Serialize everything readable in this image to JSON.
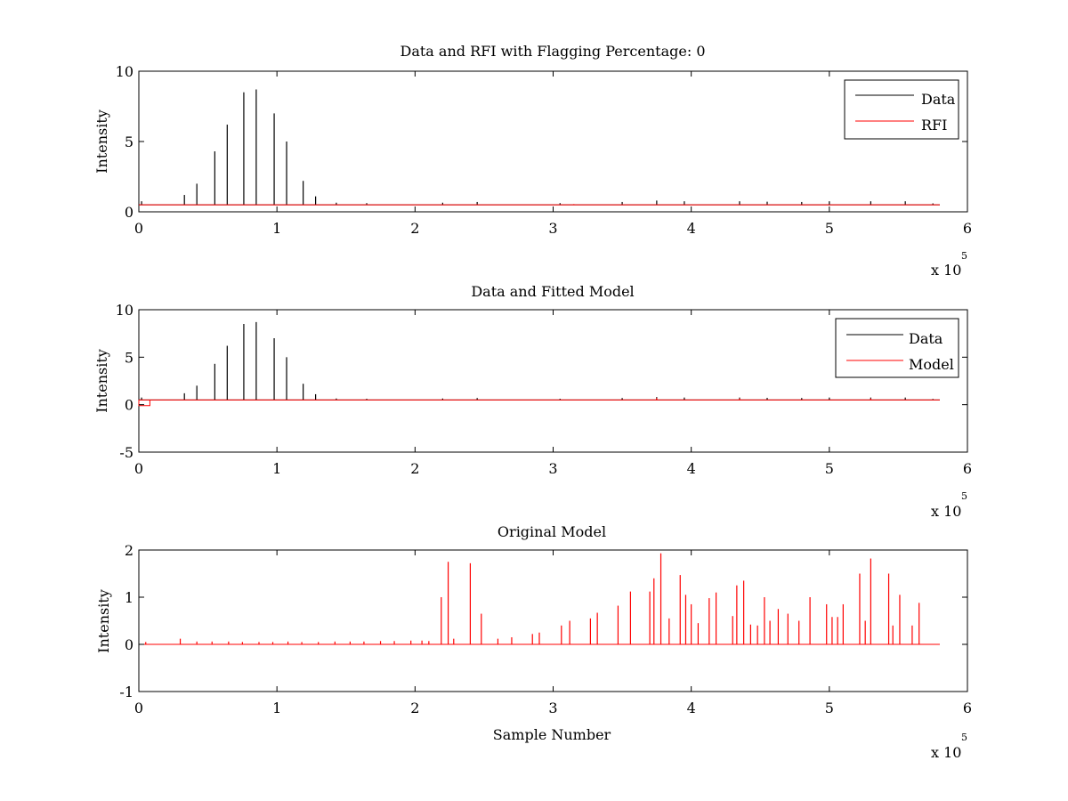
{
  "chart_data": [
    {
      "type": "line",
      "title": "Data and RFI with Flagging Percentage: 0",
      "ylabel": "Intensity",
      "xlabel": "",
      "xlim": [
        0,
        6
      ],
      "ylim": [
        0,
        10
      ],
      "xticks": [
        "0",
        "1",
        "2",
        "3",
        "4",
        "5",
        "6"
      ],
      "yticks": [
        "0",
        "5",
        "10"
      ],
      "x_multiplier": "x 10",
      "x_multiplier_exp": "5",
      "legend_position": "top-right",
      "series": [
        {
          "name": "Data",
          "color": "#000000",
          "baseline": 0.5,
          "x_end": 5.8,
          "peaks": [
            [
              0.02,
              0.75
            ],
            [
              0.33,
              1.2
            ],
            [
              0.42,
              2.0
            ],
            [
              0.55,
              4.3
            ],
            [
              0.64,
              6.2
            ],
            [
              0.76,
              8.5
            ],
            [
              0.85,
              8.7
            ],
            [
              0.98,
              7.0
            ],
            [
              1.07,
              5.0
            ],
            [
              1.19,
              2.2
            ],
            [
              1.28,
              1.1
            ],
            [
              1.43,
              0.65
            ],
            [
              1.65,
              0.62
            ],
            [
              2.2,
              0.65
            ],
            [
              2.45,
              0.7
            ],
            [
              3.05,
              0.62
            ],
            [
              3.5,
              0.7
            ],
            [
              3.75,
              0.8
            ],
            [
              3.95,
              0.75
            ],
            [
              4.35,
              0.75
            ],
            [
              4.55,
              0.72
            ],
            [
              4.8,
              0.7
            ],
            [
              5.0,
              0.75
            ],
            [
              5.3,
              0.75
            ],
            [
              5.55,
              0.75
            ],
            [
              5.75,
              0.6
            ]
          ]
        },
        {
          "name": "RFI",
          "color": "#ff0000",
          "baseline": 0.5,
          "x_end": 5.8,
          "peaks": [
            [
              3.15,
              0.55
            ]
          ]
        }
      ]
    },
    {
      "type": "line",
      "title": "Data and Fitted Model",
      "ylabel": "Intensity",
      "xlabel": "",
      "xlim": [
        0,
        6
      ],
      "ylim": [
        -5,
        10
      ],
      "xticks": [
        "0",
        "1",
        "2",
        "3",
        "4",
        "5",
        "6"
      ],
      "yticks": [
        "-5",
        "0",
        "5",
        "10"
      ],
      "x_multiplier": "x 10",
      "x_multiplier_exp": "5",
      "legend_position": "top-right",
      "series": [
        {
          "name": "Data",
          "color": "#000000",
          "baseline": 0.5,
          "x_end": 5.8,
          "peaks": [
            [
              0.02,
              0.75
            ],
            [
              0.33,
              1.2
            ],
            [
              0.42,
              2.0
            ],
            [
              0.55,
              4.3
            ],
            [
              0.64,
              6.2
            ],
            [
              0.76,
              8.5
            ],
            [
              0.85,
              8.7
            ],
            [
              0.98,
              7.0
            ],
            [
              1.07,
              5.0
            ],
            [
              1.19,
              2.2
            ],
            [
              1.28,
              1.1
            ],
            [
              1.43,
              0.65
            ],
            [
              1.65,
              0.62
            ],
            [
              2.2,
              0.65
            ],
            [
              2.45,
              0.7
            ],
            [
              3.05,
              0.62
            ],
            [
              3.5,
              0.7
            ],
            [
              3.75,
              0.8
            ],
            [
              3.95,
              0.75
            ],
            [
              4.35,
              0.75
            ],
            [
              4.55,
              0.72
            ],
            [
              4.8,
              0.7
            ],
            [
              5.0,
              0.75
            ],
            [
              5.3,
              0.75
            ],
            [
              5.55,
              0.75
            ],
            [
              5.75,
              0.6
            ]
          ]
        },
        {
          "name": "Model",
          "color": "#ff0000",
          "baseline": 0.5,
          "x_end": 5.8,
          "dip": [
            0.0,
            0.08,
            -0.1
          ],
          "peaks": [
            [
              3.75,
              0.7
            ],
            [
              4.35,
              0.65
            ],
            [
              5.3,
              0.65
            ]
          ]
        }
      ]
    },
    {
      "type": "line",
      "title": "Original Model",
      "ylabel": "Intensity",
      "xlabel": "Sample Number",
      "xlim": [
        0,
        6
      ],
      "ylim": [
        -1,
        2
      ],
      "xticks": [
        "0",
        "1",
        "2",
        "3",
        "4",
        "5",
        "6"
      ],
      "yticks": [
        "-1",
        "0",
        "1",
        "2"
      ],
      "x_multiplier": "x 10",
      "x_multiplier_exp": "5",
      "legend_position": "none",
      "series": [
        {
          "color": "#ff0000",
          "baseline": 0.0,
          "x_end": 5.8,
          "peaks": [
            [
              0.05,
              0.05
            ],
            [
              0.3,
              0.12
            ],
            [
              0.42,
              0.06
            ],
            [
              0.53,
              0.06
            ],
            [
              0.65,
              0.06
            ],
            [
              0.75,
              0.05
            ],
            [
              0.87,
              0.05
            ],
            [
              0.97,
              0.05
            ],
            [
              1.08,
              0.06
            ],
            [
              1.18,
              0.05
            ],
            [
              1.3,
              0.05
            ],
            [
              1.42,
              0.06
            ],
            [
              1.53,
              0.06
            ],
            [
              1.63,
              0.06
            ],
            [
              1.75,
              0.07
            ],
            [
              1.85,
              0.07
            ],
            [
              1.97,
              0.08
            ],
            [
              2.05,
              0.08
            ],
            [
              2.1,
              0.07
            ],
            [
              2.19,
              1.0
            ],
            [
              2.24,
              1.75
            ],
            [
              2.28,
              0.12
            ],
            [
              2.4,
              1.72
            ],
            [
              2.48,
              0.65
            ],
            [
              2.6,
              0.12
            ],
            [
              2.7,
              0.15
            ],
            [
              2.85,
              0.22
            ],
            [
              2.9,
              0.25
            ],
            [
              3.06,
              0.4
            ],
            [
              3.12,
              0.5
            ],
            [
              3.27,
              0.55
            ],
            [
              3.32,
              0.67
            ],
            [
              3.47,
              0.82
            ],
            [
              3.56,
              1.12
            ],
            [
              3.7,
              1.12
            ],
            [
              3.73,
              1.4
            ],
            [
              3.78,
              1.93
            ],
            [
              3.84,
              0.55
            ],
            [
              3.92,
              1.47
            ],
            [
              3.96,
              1.05
            ],
            [
              4.0,
              0.85
            ],
            [
              4.05,
              0.45
            ],
            [
              4.13,
              0.98
            ],
            [
              4.18,
              1.1
            ],
            [
              4.3,
              0.6
            ],
            [
              4.33,
              1.25
            ],
            [
              4.38,
              1.35
            ],
            [
              4.43,
              0.42
            ],
            [
              4.48,
              0.4
            ],
            [
              4.53,
              1.0
            ],
            [
              4.57,
              0.5
            ],
            [
              4.63,
              0.75
            ],
            [
              4.7,
              0.65
            ],
            [
              4.78,
              0.5
            ],
            [
              4.86,
              1.0
            ],
            [
              4.98,
              0.85
            ],
            [
              5.02,
              0.58
            ],
            [
              5.06,
              0.58
            ],
            [
              5.1,
              0.85
            ],
            [
              5.22,
              1.5
            ],
            [
              5.26,
              0.5
            ],
            [
              5.3,
              1.82
            ],
            [
              5.43,
              1.5
            ],
            [
              5.46,
              0.4
            ],
            [
              5.51,
              1.05
            ],
            [
              5.6,
              0.4
            ],
            [
              5.65,
              0.88
            ]
          ]
        }
      ]
    }
  ]
}
